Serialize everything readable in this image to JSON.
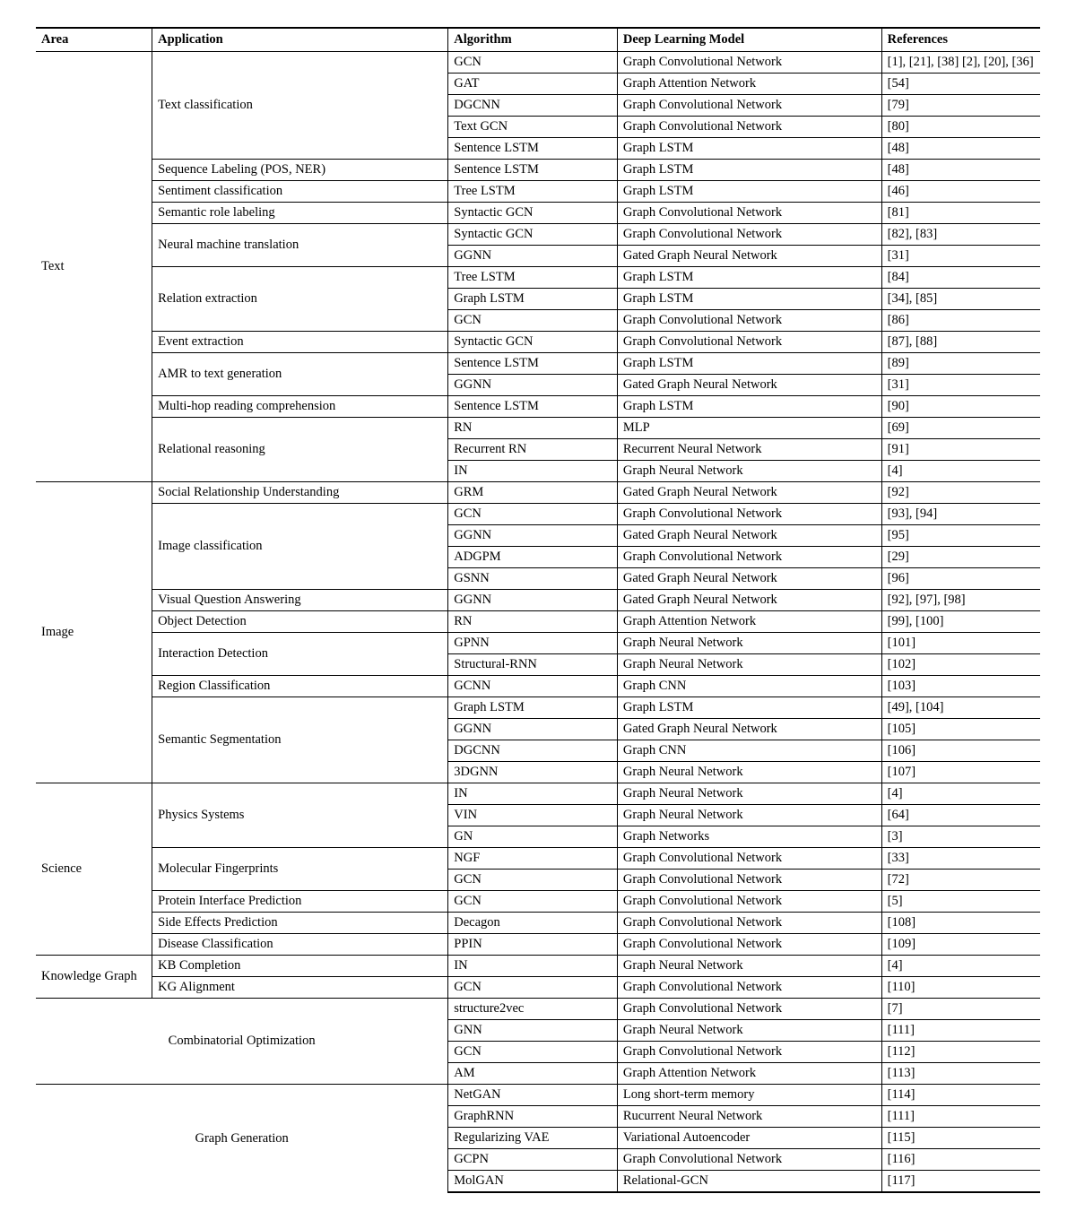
{
  "columns": [
    "Area",
    "Application",
    "Algorithm",
    "Deep Learning Model",
    "References"
  ],
  "rows": [
    {
      "area": "Text",
      "app": "Text classification",
      "algo": "GCN",
      "model": "Graph Convolutional Network",
      "ref": "[1], [21], [38] [2], [20], [36]",
      "sep": "area",
      "newArea": true,
      "newApp": true
    },
    {
      "area": "Text",
      "app": "Text classification",
      "algo": "GAT",
      "model": "Graph Attention Network",
      "ref": "[54]",
      "sep": "algo"
    },
    {
      "area": "Text",
      "app": "Text classification",
      "algo": "DGCNN",
      "model": "Graph Convolutional Network",
      "ref": "[79]",
      "sep": "algo"
    },
    {
      "area": "Text",
      "app": "Text classification",
      "algo": "Text GCN",
      "model": "Graph Convolutional Network",
      "ref": "[80]",
      "sep": "algo"
    },
    {
      "area": "Text",
      "app": "Text classification",
      "algo": "Sentence LSTM",
      "model": "Graph LSTM",
      "ref": "[48]",
      "sep": "algo"
    },
    {
      "area": "Text",
      "app": "Sequence Labeling (POS, NER)",
      "algo": "Sentence LSTM",
      "model": "Graph LSTM",
      "ref": "[48]",
      "sep": "app",
      "newApp": true
    },
    {
      "area": "Text",
      "app": "Sentiment classification",
      "algo": "Tree LSTM",
      "model": "Graph LSTM",
      "ref": "[46]",
      "sep": "app",
      "newApp": true
    },
    {
      "area": "Text",
      "app": "Semantic role labeling",
      "algo": "Syntactic GCN",
      "model": "Graph Convolutional Network",
      "ref": "[81]",
      "sep": "app",
      "newApp": true
    },
    {
      "area": "Text",
      "app": "Neural machine translation",
      "algo": "Syntactic GCN",
      "model": "Graph Convolutional Network",
      "ref": "[82], [83]",
      "sep": "app",
      "newApp": true
    },
    {
      "area": "Text",
      "app": "Neural machine translation",
      "algo": "GGNN",
      "model": "Gated Graph Neural Network",
      "ref": "[31]",
      "sep": "algo"
    },
    {
      "area": "Text",
      "app": "Relation extraction",
      "algo": "Tree LSTM",
      "model": "Graph LSTM",
      "ref": "[84]",
      "sep": "app",
      "newApp": true
    },
    {
      "area": "Text",
      "app": "Relation extraction",
      "algo": "Graph LSTM",
      "model": "Graph LSTM",
      "ref": "[34], [85]",
      "sep": "algo"
    },
    {
      "area": "Text",
      "app": "Relation extraction",
      "algo": "GCN",
      "model": "Graph Convolutional Network",
      "ref": "[86]",
      "sep": "algo"
    },
    {
      "area": "Text",
      "app": "Event extraction",
      "algo": "Syntactic GCN",
      "model": "Graph Convolutional Network",
      "ref": "[87], [88]",
      "sep": "app",
      "newApp": true
    },
    {
      "area": "Text",
      "app": "AMR to text generation",
      "algo": "Sentence LSTM",
      "model": "Graph LSTM",
      "ref": "[89]",
      "sep": "app",
      "newApp": true
    },
    {
      "area": "Text",
      "app": "AMR to text generation",
      "algo": "GGNN",
      "model": "Gated Graph Neural Network",
      "ref": "[31]",
      "sep": "algo"
    },
    {
      "area": "Text",
      "app": "Multi-hop reading comprehension",
      "algo": "Sentence LSTM",
      "model": "Graph LSTM",
      "ref": "[90]",
      "sep": "app",
      "newApp": true
    },
    {
      "area": "Text",
      "app": "Relational reasoning",
      "algo": "RN",
      "model": "MLP",
      "ref": "[69]",
      "sep": "app",
      "newApp": true
    },
    {
      "area": "Text",
      "app": "Relational reasoning",
      "algo": "Recurrent RN",
      "model": "Recurrent Neural Network",
      "ref": "[91]",
      "sep": "algo"
    },
    {
      "area": "Text",
      "app": "Relational reasoning",
      "algo": "IN",
      "model": "Graph Neural Network",
      "ref": "[4]",
      "sep": "algo"
    },
    {
      "area": "Image",
      "app": "Social Relationship Understanding",
      "algo": "GRM",
      "model": "Gated Graph Neural Network",
      "ref": "[92]",
      "sep": "area",
      "newArea": true,
      "newApp": true
    },
    {
      "area": "Image",
      "app": "Image classification",
      "algo": "GCN",
      "model": "Graph Convolutional Network",
      "ref": "[93], [94]",
      "sep": "app",
      "newApp": true
    },
    {
      "area": "Image",
      "app": "Image classification",
      "algo": "GGNN",
      "model": "Gated Graph Neural Network",
      "ref": "[95]",
      "sep": "algo"
    },
    {
      "area": "Image",
      "app": "Image classification",
      "algo": "ADGPM",
      "model": "Graph Convolutional Network",
      "ref": "[29]",
      "sep": "algo"
    },
    {
      "area": "Image",
      "app": "Image classification",
      "algo": "GSNN",
      "model": "Gated Graph Neural Network",
      "ref": "[96]",
      "sep": "algo"
    },
    {
      "area": "Image",
      "app": "Visual Question Answering",
      "algo": "GGNN",
      "model": "Gated Graph Neural Network",
      "ref": "[92], [97], [98]",
      "sep": "app",
      "newApp": true
    },
    {
      "area": "Image",
      "app": "Object Detection",
      "algo": "RN",
      "model": "Graph Attention Network",
      "ref": "[99], [100]",
      "sep": "app",
      "newApp": true
    },
    {
      "area": "Image",
      "app": "Interaction Detection",
      "algo": "GPNN",
      "model": "Graph Neural Network",
      "ref": "[101]",
      "sep": "app",
      "newApp": true
    },
    {
      "area": "Image",
      "app": "Interaction Detection",
      "algo": "Structural-RNN",
      "model": "Graph Neural Network",
      "ref": "[102]",
      "sep": "algo"
    },
    {
      "area": "Image",
      "app": "Region Classification",
      "algo": "GCNN",
      "model": "Graph CNN",
      "ref": "[103]",
      "sep": "app",
      "newApp": true
    },
    {
      "area": "Image",
      "app": "Semantic Segmentation",
      "algo": "Graph LSTM",
      "model": "Graph LSTM",
      "ref": "[49], [104]",
      "sep": "app",
      "newApp": true
    },
    {
      "area": "Image",
      "app": "Semantic Segmentation",
      "algo": "GGNN",
      "model": "Gated Graph Neural Network",
      "ref": "[105]",
      "sep": "algo"
    },
    {
      "area": "Image",
      "app": "Semantic Segmentation",
      "algo": "DGCNN",
      "model": "Graph CNN",
      "ref": "[106]",
      "sep": "algo"
    },
    {
      "area": "Image",
      "app": "Semantic Segmentation",
      "algo": "3DGNN",
      "model": "Graph Neural Network",
      "ref": "[107]",
      "sep": "algo"
    },
    {
      "area": "Science",
      "app": "Physics Systems",
      "algo": "IN",
      "model": "Graph Neural Network",
      "ref": "[4]",
      "sep": "area",
      "newArea": true,
      "newApp": true
    },
    {
      "area": "Science",
      "app": "Physics Systems",
      "algo": "VIN",
      "model": "Graph Neural Network",
      "ref": "[64]",
      "sep": "algo"
    },
    {
      "area": "Science",
      "app": "Physics Systems",
      "algo": "GN",
      "model": "Graph Networks",
      "ref": "[3]",
      "sep": "algo"
    },
    {
      "area": "Science",
      "app": "Molecular Fingerprints",
      "algo": "NGF",
      "model": "Graph Convolutional Network",
      "ref": "[33]",
      "sep": "app",
      "newApp": true
    },
    {
      "area": "Science",
      "app": "Molecular Fingerprints",
      "algo": "GCN",
      "model": "Graph Convolutional Network",
      "ref": "[72]",
      "sep": "algo"
    },
    {
      "area": "Science",
      "app": "Protein Interface Prediction",
      "algo": "GCN",
      "model": "Graph Convolutional Network",
      "ref": "[5]",
      "sep": "app",
      "newApp": true
    },
    {
      "area": "Science",
      "app": "Side Effects Prediction",
      "algo": "Decagon",
      "model": "Graph Convolutional Network",
      "ref": "[108]",
      "sep": "app",
      "newApp": true
    },
    {
      "area": "Science",
      "app": "Disease Classification",
      "algo": "PPIN",
      "model": "Graph Convolutional Network",
      "ref": "[109]",
      "sep": "app",
      "newApp": true
    },
    {
      "area": "Knowledge Graph",
      "app": "KB Completion",
      "algo": "IN",
      "model": "Graph Neural Network",
      "ref": "[4]",
      "sep": "area",
      "newArea": true,
      "newApp": true
    },
    {
      "area": "Knowledge Graph",
      "app": "KG Alignment",
      "algo": "GCN",
      "model": "Graph Convolutional Network",
      "ref": "[110]",
      "sep": "app",
      "newApp": true
    },
    {
      "area": "",
      "app": "Combinatorial Optimization",
      "algo": "structure2vec",
      "model": "Graph Convolutional Network",
      "ref": "[7]",
      "sep": "area",
      "newArea": true,
      "newApp": true,
      "mergeAreaApp": true
    },
    {
      "area": "",
      "app": "Combinatorial Optimization",
      "algo": "GNN",
      "model": "Graph Neural Network",
      "ref": "[111]",
      "sep": "algo",
      "mergeAreaApp": true
    },
    {
      "area": "",
      "app": "Combinatorial Optimization",
      "algo": "GCN",
      "model": "Graph Convolutional Network",
      "ref": "[112]",
      "sep": "algo",
      "mergeAreaApp": true
    },
    {
      "area": "",
      "app": "Combinatorial Optimization",
      "algo": "AM",
      "model": "Graph Attention Network",
      "ref": "[113]",
      "sep": "algo",
      "mergeAreaApp": true
    },
    {
      "area": "",
      "app": "Graph Generation",
      "algo": "NetGAN",
      "model": "Long short-term memory",
      "ref": "[114]",
      "sep": "area",
      "newArea": true,
      "newApp": true,
      "mergeAreaApp": true
    },
    {
      "area": "",
      "app": "Graph Generation",
      "algo": "GraphRNN",
      "model": "Rucurrent Neural Network",
      "ref": "[111]",
      "sep": "algo",
      "mergeAreaApp": true
    },
    {
      "area": "",
      "app": "Graph Generation",
      "algo": "Regularizing VAE",
      "model": "Variational Autoencoder",
      "ref": "[115]",
      "sep": "algo",
      "mergeAreaApp": true
    },
    {
      "area": "",
      "app": "Graph Generation",
      "algo": "GCPN",
      "model": "Graph Convolutional Network",
      "ref": "[116]",
      "sep": "algo",
      "mergeAreaApp": true
    },
    {
      "area": "",
      "app": "Graph Generation",
      "algo": "MolGAN",
      "model": "Relational-GCN",
      "ref": "[117]",
      "sep": "algo",
      "mergeAreaApp": true
    }
  ]
}
